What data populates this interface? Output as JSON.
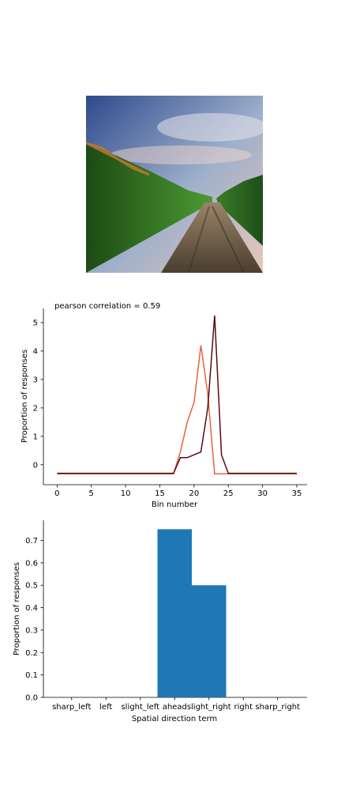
{
  "photo": {
    "icon": "cornfield-dirt-road-photo",
    "colors": {
      "sky_top": "#2e4a8c",
      "sky_mid": "#9fb0cc",
      "horizon": "#e8c7b8",
      "corn_green": "#3f8a2a",
      "corn_dark": "#1c4a14",
      "tassel": "#c87a2a",
      "soil": "#6b5a45"
    }
  },
  "chart_data": [
    {
      "type": "line",
      "title": "pearson correlation = 0.59",
      "xlabel": "Bin number",
      "ylabel": "Proportion of responses",
      "xlim": [
        -2,
        36.5
      ],
      "ylim": [
        -0.7,
        5.5
      ],
      "xticks": [
        0,
        5,
        10,
        15,
        20,
        25,
        30,
        35
      ],
      "yticks": [
        0,
        1,
        2,
        3,
        4,
        5
      ],
      "grid": false,
      "series": [
        {
          "color": "#e8623a",
          "x": [
            0,
            1,
            2,
            3,
            4,
            5,
            6,
            7,
            8,
            9,
            10,
            11,
            12,
            13,
            14,
            15,
            16,
            17,
            18,
            19,
            20,
            21,
            22,
            23,
            24,
            25,
            26,
            27,
            28,
            29,
            30,
            31,
            32,
            33,
            34,
            35
          ],
          "y": [
            -0.32,
            -0.32,
            -0.32,
            -0.32,
            -0.32,
            -0.32,
            -0.32,
            -0.32,
            -0.32,
            -0.32,
            -0.32,
            -0.32,
            -0.32,
            -0.32,
            -0.32,
            -0.32,
            -0.32,
            -0.32,
            0.45,
            1.5,
            2.2,
            4.2,
            2.5,
            -0.32,
            -0.32,
            -0.32,
            -0.32,
            -0.32,
            -0.32,
            -0.32,
            -0.32,
            -0.32,
            -0.32,
            -0.32,
            -0.32,
            -0.32
          ]
        },
        {
          "color": "#5a0a10",
          "x": [
            0,
            1,
            2,
            3,
            4,
            5,
            6,
            7,
            8,
            9,
            10,
            11,
            12,
            13,
            14,
            15,
            16,
            17,
            18,
            19,
            20,
            21,
            22,
            23,
            24,
            25,
            26,
            27,
            28,
            29,
            30,
            31,
            32,
            33,
            34,
            35
          ],
          "y": [
            -0.3,
            -0.3,
            -0.3,
            -0.3,
            -0.3,
            -0.3,
            -0.3,
            -0.3,
            -0.3,
            -0.3,
            -0.3,
            -0.3,
            -0.3,
            -0.3,
            -0.3,
            -0.3,
            -0.3,
            -0.3,
            0.25,
            0.25,
            0.35,
            0.45,
            2.0,
            5.25,
            0.35,
            -0.3,
            -0.3,
            -0.3,
            -0.3,
            -0.3,
            -0.3,
            -0.3,
            -0.3,
            -0.3,
            -0.3,
            -0.3
          ]
        }
      ]
    },
    {
      "type": "bar",
      "xlabel": "Spatial direction term",
      "ylabel": "Proportion of responses",
      "categories": [
        "sharp_left",
        "left",
        "slight_left",
        "ahead",
        "slight_right",
        "right",
        "sharp_right"
      ],
      "values": [
        0,
        0,
        0,
        0.75,
        0.5,
        0,
        0
      ],
      "ylim": [
        0,
        0.79
      ],
      "yticks": [
        "0.0",
        "0.1",
        "0.2",
        "0.3",
        "0.4",
        "0.5",
        "0.6",
        "0.7"
      ],
      "bar_color": "#1f77b4",
      "grid": false
    }
  ]
}
